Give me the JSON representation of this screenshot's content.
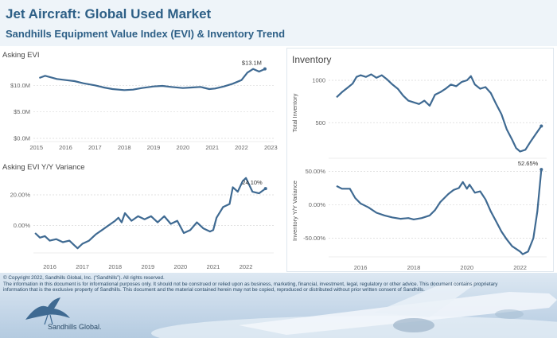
{
  "header": {
    "title": "Jet Aircraft:  Global Used Market",
    "subtitle": "Sandhills Equipment Value Index (EVI) & Inventory Trend"
  },
  "footer": {
    "copyright": "© Copyright 2022, Sandhills Global, Inc. (“Sandhills”). All rights reserved.",
    "disclaimer_1": "The information in this document is for informational purposes only.  It should not be construed or relied upon as business, marketing, financial, investment, legal, regulatory or other advice. This document contains proprietary",
    "disclaimer_2": "information that is the exclusive property of Sandhills. This document and the material contained herein may not be copied, reproduced or distributed without prior written consent of Sandhills.",
    "logo_text": "Sandhills Global."
  },
  "colors": {
    "line": "#3f6a92",
    "axis_text": "#666666",
    "grid": "#d9d9d9",
    "title": "#2d5f86"
  },
  "chart_data": [
    {
      "id": "asking-evi",
      "type": "line",
      "title": "Asking EVI",
      "xlabel": "",
      "ylabel": "",
      "x_ticks": [
        "2015",
        "2016",
        "2017",
        "2018",
        "2019",
        "2020",
        "2021",
        "2022",
        "2023"
      ],
      "y_ticks": [
        "$0.0M",
        "$5.0M",
        "$10.0M"
      ],
      "y_tick_values": [
        0,
        5,
        10
      ],
      "xlim": [
        2014.9,
        2023.1
      ],
      "ylim": [
        -0.6,
        15
      ],
      "end_label": "$13.1M",
      "grid": true,
      "series": [
        {
          "x": [
            2015.1,
            2015.3,
            2015.5,
            2015.7,
            2016.0,
            2016.3,
            2016.6,
            2017.0,
            2017.3,
            2017.6,
            2018.0,
            2018.3,
            2018.6,
            2019.0,
            2019.3,
            2019.6,
            2020.0,
            2020.3,
            2020.6,
            2020.9,
            2021.1,
            2021.4,
            2021.7,
            2022.0,
            2022.2,
            2022.4,
            2022.6,
            2022.8
          ],
          "y": [
            11.4,
            11.8,
            11.5,
            11.2,
            11.0,
            10.8,
            10.4,
            10.0,
            9.6,
            9.3,
            9.1,
            9.2,
            9.5,
            9.8,
            9.9,
            9.7,
            9.5,
            9.6,
            9.7,
            9.3,
            9.4,
            9.8,
            10.3,
            11.0,
            12.4,
            13.1,
            12.6,
            13.1
          ]
        }
      ]
    },
    {
      "id": "asking-evi-yoy",
      "type": "line",
      "title": "Asking EVI Y/Y Variance",
      "xlabel": "",
      "ylabel": "",
      "x_ticks": [
        "2016",
        "2017",
        "2018",
        "2019",
        "2020",
        "2021",
        "2022"
      ],
      "y_ticks": [
        "0.00%",
        "20.00%"
      ],
      "y_tick_values": [
        0,
        20
      ],
      "xlim": [
        2015.5,
        2022.85
      ],
      "ylim": [
        -18,
        33
      ],
      "end_label": "24.10%",
      "grid": true,
      "series": [
        {
          "x": [
            2015.55,
            2015.7,
            2015.85,
            2016.0,
            2016.2,
            2016.4,
            2016.6,
            2016.75,
            2016.85,
            2017.0,
            2017.2,
            2017.4,
            2017.6,
            2017.8,
            2018.0,
            2018.1,
            2018.2,
            2018.3,
            2018.5,
            2018.7,
            2018.9,
            2019.1,
            2019.3,
            2019.5,
            2019.7,
            2019.9,
            2020.1,
            2020.3,
            2020.5,
            2020.7,
            2020.9,
            2021.0,
            2021.1,
            2021.3,
            2021.5,
            2021.6,
            2021.75,
            2021.9,
            2022.0,
            2022.2,
            2022.4,
            2022.6
          ],
          "y": [
            -5,
            -8,
            -7,
            -10,
            -9,
            -11,
            -10,
            -13,
            -15,
            -12,
            -10,
            -6,
            -3,
            0,
            3,
            5,
            2,
            8,
            3,
            6,
            4,
            6,
            2,
            6,
            1,
            3,
            -5,
            -3,
            2,
            -2,
            -4,
            -3,
            5,
            12,
            14,
            25,
            22,
            29,
            31,
            22,
            21,
            24.1
          ]
        }
      ]
    },
    {
      "id": "inventory",
      "type": "line",
      "title": "Inventory",
      "xlabel": "",
      "ylabel": "Total Inventory",
      "x_ticks": [],
      "y_ticks": [
        "500",
        "1000"
      ],
      "y_tick_values": [
        500,
        1000
      ],
      "xlim": [
        2014.8,
        2023.0
      ],
      "ylim": [
        80,
        1150
      ],
      "end_label": "",
      "grid": true,
      "series": [
        {
          "x": [
            2015.1,
            2015.3,
            2015.5,
            2015.7,
            2015.85,
            2016.0,
            2016.2,
            2016.4,
            2016.6,
            2016.8,
            2017.0,
            2017.2,
            2017.4,
            2017.6,
            2017.8,
            2018.0,
            2018.2,
            2018.4,
            2018.6,
            2018.8,
            2019.0,
            2019.2,
            2019.4,
            2019.6,
            2019.8,
            2020.0,
            2020.15,
            2020.3,
            2020.5,
            2020.7,
            2020.9,
            2021.1,
            2021.3,
            2021.5,
            2021.7,
            2021.85,
            2022.0,
            2022.2,
            2022.4,
            2022.6,
            2022.8
          ],
          "y": [
            800,
            860,
            910,
            960,
            1040,
            1060,
            1040,
            1070,
            1030,
            1060,
            1010,
            950,
            900,
            820,
            760,
            740,
            720,
            760,
            700,
            830,
            860,
            900,
            950,
            930,
            980,
            1000,
            1050,
            950,
            900,
            920,
            850,
            720,
            600,
            420,
            300,
            200,
            160,
            180,
            280,
            370,
            460
          ]
        }
      ]
    },
    {
      "id": "inventory-yoy",
      "type": "line",
      "title": "",
      "xlabel": "",
      "ylabel": "Inventory  Y/Y Variance",
      "x_ticks": [
        "2016",
        "2018",
        "2020",
        "2022"
      ],
      "y_ticks": [
        "-50.00%",
        "0.00%",
        "50.00%"
      ],
      "y_tick_values": [
        -50,
        0,
        50
      ],
      "xlim": [
        2014.8,
        2023.0
      ],
      "ylim": [
        -78,
        60
      ],
      "end_label": "52.65%",
      "grid": true,
      "series": [
        {
          "x": [
            2015.1,
            2015.3,
            2015.6,
            2015.8,
            2016.0,
            2016.3,
            2016.6,
            2016.9,
            2017.2,
            2017.5,
            2017.8,
            2018.0,
            2018.3,
            2018.6,
            2018.8,
            2019.0,
            2019.3,
            2019.5,
            2019.7,
            2019.85,
            2020.0,
            2020.1,
            2020.3,
            2020.5,
            2020.7,
            2020.9,
            2021.1,
            2021.3,
            2021.5,
            2021.7,
            2021.85,
            2022.0,
            2022.1,
            2022.3,
            2022.5,
            2022.65,
            2022.8
          ],
          "y": [
            28,
            24,
            24,
            10,
            2,
            -4,
            -12,
            -16,
            -19,
            -21,
            -20,
            -22,
            -20,
            -16,
            -8,
            4,
            16,
            22,
            25,
            34,
            24,
            30,
            18,
            20,
            8,
            -10,
            -25,
            -40,
            -52,
            -62,
            -66,
            -70,
            -74,
            -70,
            -50,
            -10,
            52.65
          ]
        }
      ]
    }
  ]
}
